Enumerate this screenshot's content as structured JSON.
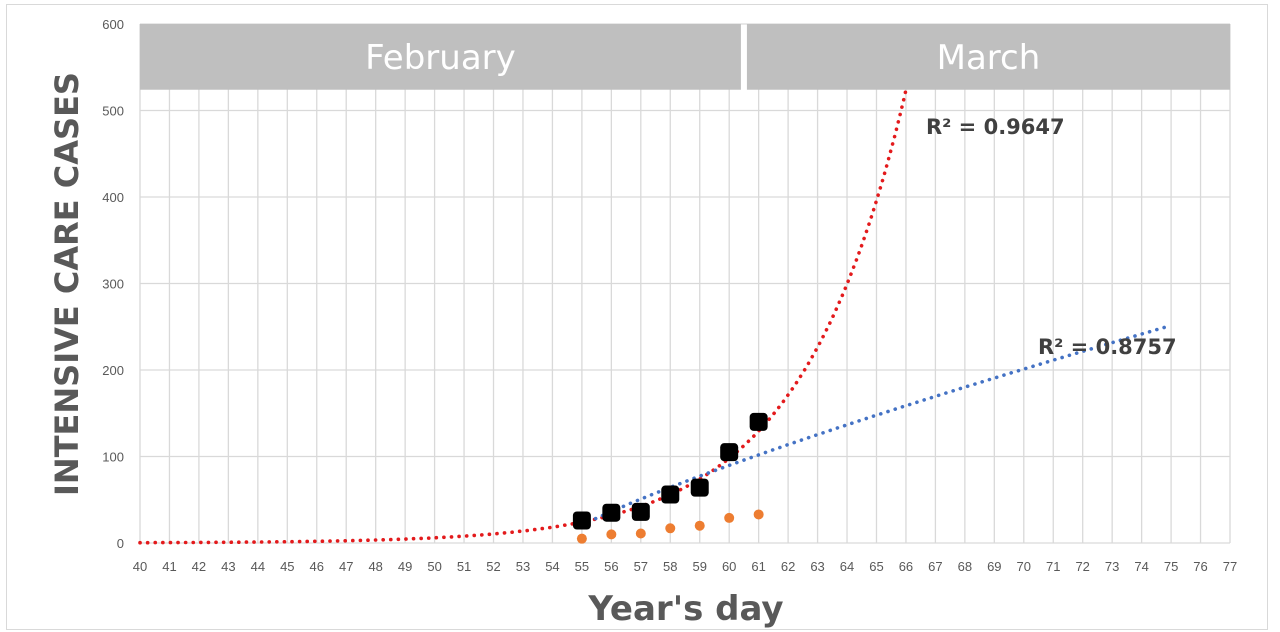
{
  "chart_data": {
    "type": "scatter",
    "title": "",
    "xlabel": "Year's day",
    "ylabel": "INTENSIVE CARE CASES",
    "xlim": [
      40,
      77
    ],
    "ylim": [
      0,
      600
    ],
    "x_ticks": [
      40,
      41,
      42,
      43,
      44,
      45,
      46,
      47,
      48,
      49,
      50,
      51,
      52,
      53,
      54,
      55,
      56,
      57,
      58,
      59,
      60,
      61,
      62,
      63,
      64,
      65,
      66,
      67,
      68,
      69,
      70,
      71,
      72,
      73,
      74,
      75,
      76,
      77
    ],
    "y_ticks": [
      0,
      100,
      200,
      300,
      400,
      500,
      600
    ],
    "grid": true,
    "months": [
      {
        "label": "February",
        "from": 40,
        "to": 60.5
      },
      {
        "label": "March",
        "from": 60.5,
        "to": 77
      }
    ],
    "series": [
      {
        "marker": "square",
        "color": "#000000",
        "x": [
          55,
          56,
          57,
          58,
          59,
          60,
          61
        ],
        "y": [
          26,
          35,
          36,
          56,
          64,
          105,
          140
        ]
      },
      {
        "marker": "circle",
        "color": "#ed7d31",
        "x": [
          55,
          56,
          57,
          58,
          59,
          60,
          61
        ],
        "y": [
          5,
          10,
          11,
          17,
          20,
          29,
          33
        ]
      }
    ],
    "trendlines": [
      {
        "kind": "exponential",
        "color": "#e31a1c",
        "x_range": [
          40,
          66
        ],
        "r2_label": "R² = 0.9647"
      },
      {
        "kind": "power",
        "color": "#4472c4",
        "x_range": [
          55,
          75
        ],
        "r2_label": "R² = 0.8757"
      }
    ]
  }
}
